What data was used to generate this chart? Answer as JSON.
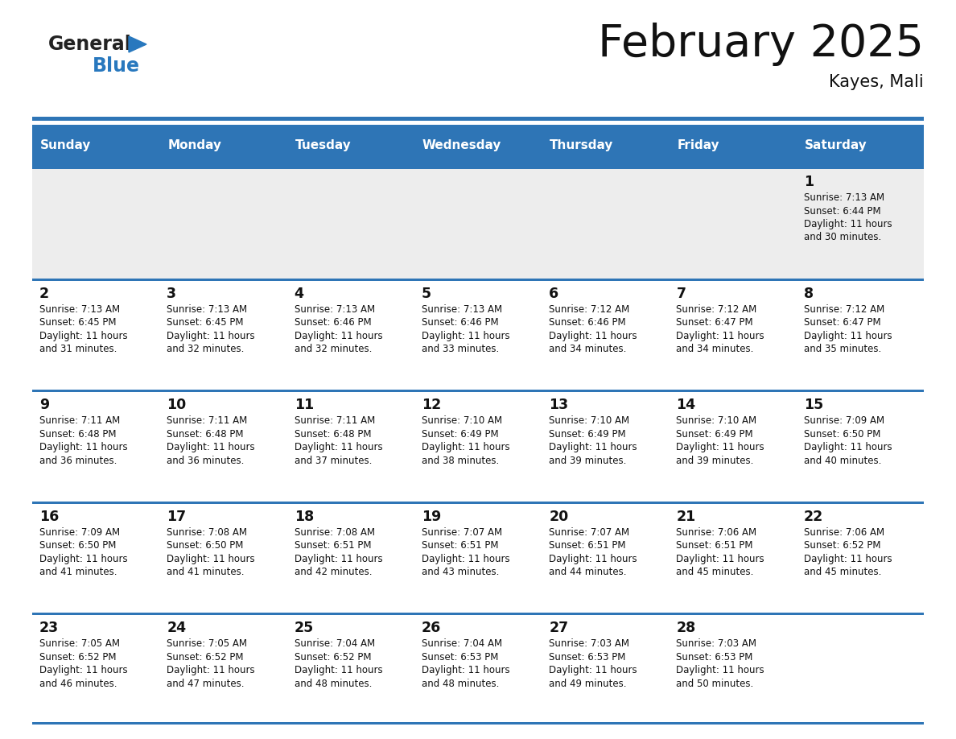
{
  "title": "February 2025",
  "subtitle": "Kayes, Mali",
  "header_color": "#2E75B6",
  "header_text_color": "#FFFFFF",
  "day_names": [
    "Sunday",
    "Monday",
    "Tuesday",
    "Wednesday",
    "Thursday",
    "Friday",
    "Saturday"
  ],
  "background_color": "#FFFFFF",
  "row0_bg": "#EDEDED",
  "divider_color": "#2E75B6",
  "calendar_data": [
    [
      null,
      null,
      null,
      null,
      null,
      null,
      {
        "day": 1,
        "sunrise": "7:13 AM",
        "sunset": "6:44 PM",
        "daylight": "11 hours\nand 30 minutes."
      }
    ],
    [
      {
        "day": 2,
        "sunrise": "7:13 AM",
        "sunset": "6:45 PM",
        "daylight": "11 hours\nand 31 minutes."
      },
      {
        "day": 3,
        "sunrise": "7:13 AM",
        "sunset": "6:45 PM",
        "daylight": "11 hours\nand 32 minutes."
      },
      {
        "day": 4,
        "sunrise": "7:13 AM",
        "sunset": "6:46 PM",
        "daylight": "11 hours\nand 32 minutes."
      },
      {
        "day": 5,
        "sunrise": "7:13 AM",
        "sunset": "6:46 PM",
        "daylight": "11 hours\nand 33 minutes."
      },
      {
        "day": 6,
        "sunrise": "7:12 AM",
        "sunset": "6:46 PM",
        "daylight": "11 hours\nand 34 minutes."
      },
      {
        "day": 7,
        "sunrise": "7:12 AM",
        "sunset": "6:47 PM",
        "daylight": "11 hours\nand 34 minutes."
      },
      {
        "day": 8,
        "sunrise": "7:12 AM",
        "sunset": "6:47 PM",
        "daylight": "11 hours\nand 35 minutes."
      }
    ],
    [
      {
        "day": 9,
        "sunrise": "7:11 AM",
        "sunset": "6:48 PM",
        "daylight": "11 hours\nand 36 minutes."
      },
      {
        "day": 10,
        "sunrise": "7:11 AM",
        "sunset": "6:48 PM",
        "daylight": "11 hours\nand 36 minutes."
      },
      {
        "day": 11,
        "sunrise": "7:11 AM",
        "sunset": "6:48 PM",
        "daylight": "11 hours\nand 37 minutes."
      },
      {
        "day": 12,
        "sunrise": "7:10 AM",
        "sunset": "6:49 PM",
        "daylight": "11 hours\nand 38 minutes."
      },
      {
        "day": 13,
        "sunrise": "7:10 AM",
        "sunset": "6:49 PM",
        "daylight": "11 hours\nand 39 minutes."
      },
      {
        "day": 14,
        "sunrise": "7:10 AM",
        "sunset": "6:49 PM",
        "daylight": "11 hours\nand 39 minutes."
      },
      {
        "day": 15,
        "sunrise": "7:09 AM",
        "sunset": "6:50 PM",
        "daylight": "11 hours\nand 40 minutes."
      }
    ],
    [
      {
        "day": 16,
        "sunrise": "7:09 AM",
        "sunset": "6:50 PM",
        "daylight": "11 hours\nand 41 minutes."
      },
      {
        "day": 17,
        "sunrise": "7:08 AM",
        "sunset": "6:50 PM",
        "daylight": "11 hours\nand 41 minutes."
      },
      {
        "day": 18,
        "sunrise": "7:08 AM",
        "sunset": "6:51 PM",
        "daylight": "11 hours\nand 42 minutes."
      },
      {
        "day": 19,
        "sunrise": "7:07 AM",
        "sunset": "6:51 PM",
        "daylight": "11 hours\nand 43 minutes."
      },
      {
        "day": 20,
        "sunrise": "7:07 AM",
        "sunset": "6:51 PM",
        "daylight": "11 hours\nand 44 minutes."
      },
      {
        "day": 21,
        "sunrise": "7:06 AM",
        "sunset": "6:51 PM",
        "daylight": "11 hours\nand 45 minutes."
      },
      {
        "day": 22,
        "sunrise": "7:06 AM",
        "sunset": "6:52 PM",
        "daylight": "11 hours\nand 45 minutes."
      }
    ],
    [
      {
        "day": 23,
        "sunrise": "7:05 AM",
        "sunset": "6:52 PM",
        "daylight": "11 hours\nand 46 minutes."
      },
      {
        "day": 24,
        "sunrise": "7:05 AM",
        "sunset": "6:52 PM",
        "daylight": "11 hours\nand 47 minutes."
      },
      {
        "day": 25,
        "sunrise": "7:04 AM",
        "sunset": "6:52 PM",
        "daylight": "11 hours\nand 48 minutes."
      },
      {
        "day": 26,
        "sunrise": "7:04 AM",
        "sunset": "6:53 PM",
        "daylight": "11 hours\nand 48 minutes."
      },
      {
        "day": 27,
        "sunrise": "7:03 AM",
        "sunset": "6:53 PM",
        "daylight": "11 hours\nand 49 minutes."
      },
      {
        "day": 28,
        "sunrise": "7:03 AM",
        "sunset": "6:53 PM",
        "daylight": "11 hours\nand 50 minutes."
      },
      null
    ]
  ],
  "logo_general_color": "#222222",
  "logo_blue_color": "#2878BE",
  "figsize": [
    11.88,
    9.18
  ],
  "dpi": 100
}
